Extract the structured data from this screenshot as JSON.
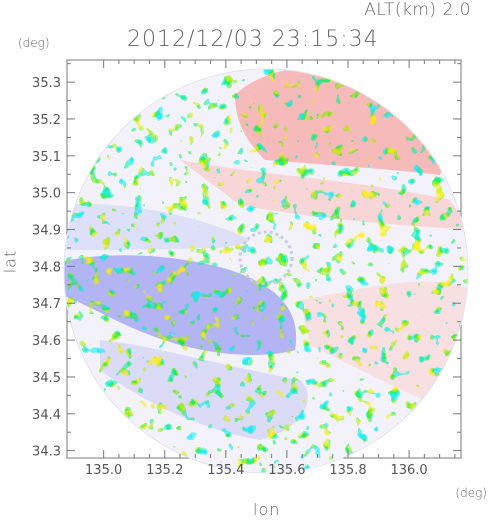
{
  "header": {
    "altitude_label": "ALT(km) 2.0",
    "timestamp": "2012/12/03 23:15:34"
  },
  "axes": {
    "x_unit": "(deg)",
    "y_unit": "(deg)",
    "x_label": "lon",
    "y_label": "lat",
    "x_ticks": [
      "135.0",
      "135.2",
      "135.4",
      "135.6",
      "135.8",
      "136.0"
    ],
    "y_ticks": [
      "35.3",
      "35.2",
      "35.1",
      "35.0",
      "34.9",
      "34.8",
      "34.7",
      "34.6",
      "34.5",
      "34.4",
      "34.3"
    ]
  },
  "map": {
    "type": "radar-doppler-velocity",
    "center_lon": 135.52,
    "center_lat": 34.82,
    "lon_range": [
      134.88,
      136.17
    ],
    "lat_range": [
      34.28,
      35.36
    ],
    "colors": {
      "approaching": "#8a8cf0",
      "receding": "#f08a8a",
      "neutral": "#f4f4fb"
    }
  }
}
